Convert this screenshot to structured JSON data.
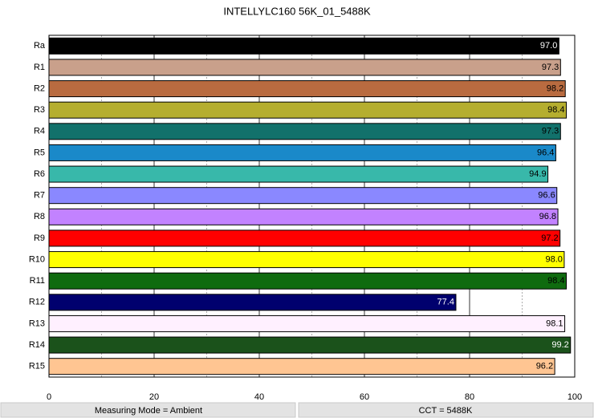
{
  "chart_data": {
    "type": "barh",
    "title": "INTELLYLC160 56K_01_5488K",
    "categories": [
      "Ra",
      "R1",
      "R2",
      "R3",
      "R4",
      "R5",
      "R6",
      "R7",
      "R8",
      "R9",
      "R10",
      "R11",
      "R12",
      "R13",
      "R14",
      "R15"
    ],
    "values": [
      97.0,
      97.3,
      98.2,
      98.4,
      97.3,
      96.4,
      94.9,
      96.6,
      96.8,
      97.2,
      98.0,
      98.4,
      77.4,
      98.1,
      99.2,
      96.2
    ],
    "value_labels": [
      "97.0",
      "97.3",
      "98.2",
      "98.4",
      "97.3",
      "96.4",
      "94.9",
      "96.6",
      "96.8",
      "97.2",
      "98.0",
      "98.4",
      "77.4",
      "98.1",
      "99.2",
      "96.2"
    ],
    "colors": [
      "#000000",
      "#c9a08b",
      "#b96b40",
      "#b5ae2f",
      "#12716b",
      "#1a89c9",
      "#38b8aa",
      "#8a88ff",
      "#c282ff",
      "#ff0000",
      "#ffff00",
      "#0f6b0f",
      "#00006e",
      "#fff0ff",
      "#1b521b",
      "#ffc592"
    ],
    "xlim": [
      0,
      100
    ],
    "xticks": [
      0,
      20,
      40,
      60,
      80,
      100
    ],
    "minor_grid": [
      10,
      30,
      50,
      70,
      90
    ],
    "grid": true
  },
  "footer": [
    "Measuring Mode = Ambient",
    "CCT = 5488K"
  ]
}
